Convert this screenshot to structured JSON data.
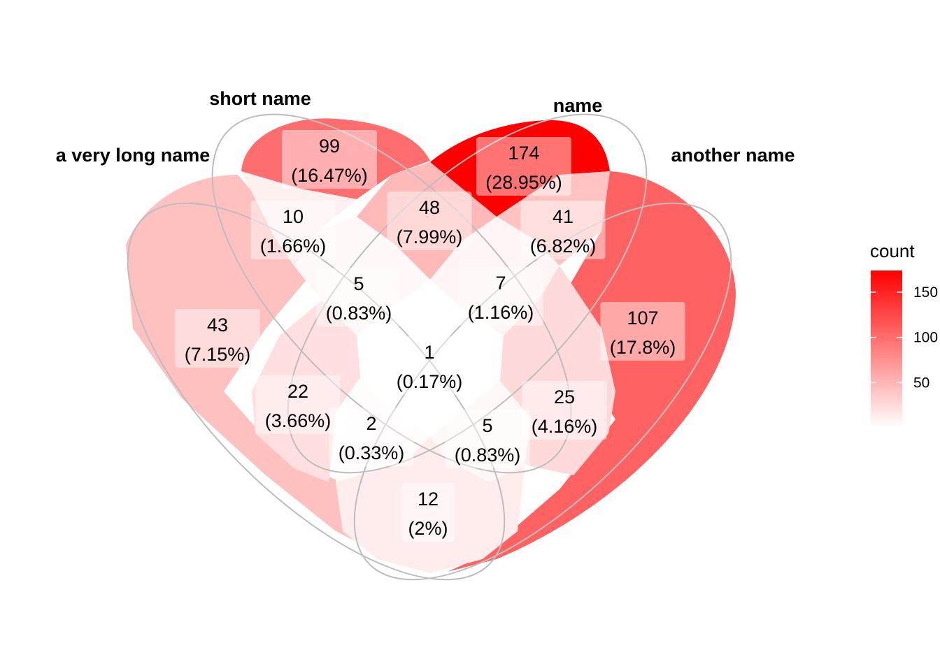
{
  "chart_data": {
    "type": "venn",
    "sets": [
      "a very long name",
      "short name",
      "name",
      "another name"
    ],
    "regions": [
      {
        "sets": [
          "a very long name"
        ],
        "count": 43,
        "label": "(7.15%)"
      },
      {
        "sets": [
          "short name"
        ],
        "count": 99,
        "label": "(16.47%)"
      },
      {
        "sets": [
          "name"
        ],
        "count": 174,
        "label": "(28.95%)"
      },
      {
        "sets": [
          "another name"
        ],
        "count": 107,
        "label": "(17.8%)"
      },
      {
        "sets": [
          "a very long name",
          "short name"
        ],
        "count": 10,
        "label": "(1.66%)"
      },
      {
        "sets": [
          "short name",
          "name"
        ],
        "count": 48,
        "label": "(7.99%)"
      },
      {
        "sets": [
          "name",
          "another name"
        ],
        "count": 41,
        "label": "(6.82%)"
      },
      {
        "sets": [
          "a very long name",
          "short name",
          "name"
        ],
        "count": 5,
        "label": "(0.83%)"
      },
      {
        "sets": [
          "short name",
          "name",
          "another name"
        ],
        "count": 7,
        "label": "(1.16%)"
      },
      {
        "sets": [
          "a very long name",
          "short name",
          "name",
          "another name"
        ],
        "count": 1,
        "label": "(0.17%)"
      },
      {
        "sets": [
          "a very long name",
          "name"
        ],
        "count": 22,
        "label": "(3.66%)"
      },
      {
        "sets": [
          "a very long name",
          "name",
          "another name"
        ],
        "count": 2,
        "label": "(0.33%)"
      },
      {
        "sets": [
          "a very long name",
          "short name",
          "another name"
        ],
        "count": 5,
        "label": "(0.83%)"
      },
      {
        "sets": [
          "short name",
          "another name"
        ],
        "count": 25,
        "label": "(4.16%)"
      },
      {
        "sets": [
          "a very long name",
          "another name"
        ],
        "count": 12,
        "label": "(2%)"
      }
    ],
    "fill_scale": {
      "low": "#ffffff",
      "high": "#ff0000",
      "domain": [
        0,
        174
      ]
    },
    "legend": {
      "title": "count",
      "ticks": [
        50,
        100,
        150
      ],
      "placement": "right"
    }
  }
}
